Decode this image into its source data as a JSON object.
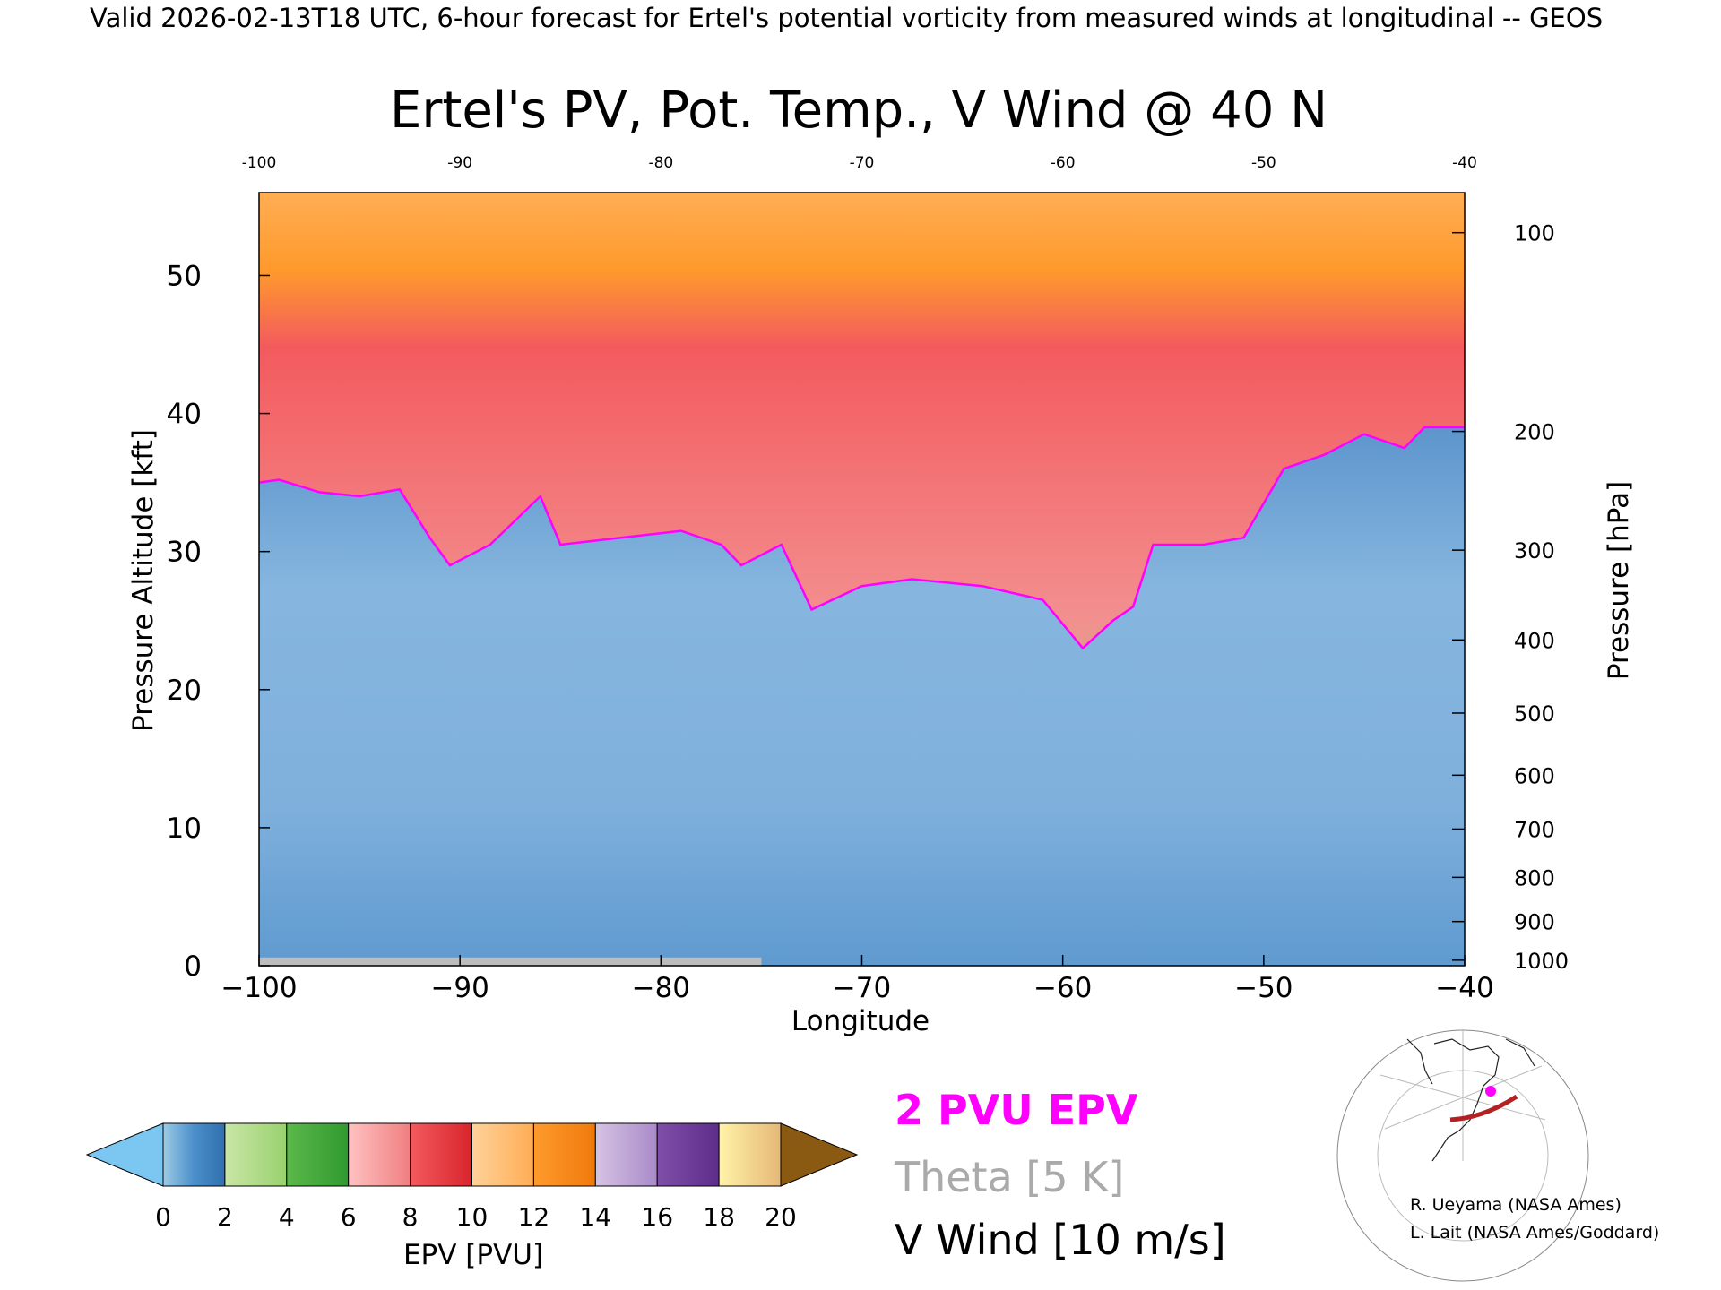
{
  "header": {
    "valid_line": "Valid 2026-02-13T18 UTC, 6-hour forecast for Ertel's potential vorticity from measured winds at longitudinal -- GEOS"
  },
  "chart_data": {
    "type": "heatmap",
    "title": "Ertel's PV, Pot. Temp., V Wind @ 40 N",
    "xlabel": "Longitude",
    "ylabel": "Pressure Altitude [kft]",
    "ylabel_right": "Pressure [hPa]",
    "xlim": [
      -100,
      -40
    ],
    "ylim": [
      0,
      56
    ],
    "x_ticks": [
      -100,
      -90,
      -80,
      -70,
      -60,
      -50,
      -40
    ],
    "x_tick_labels": [
      "−100",
      "−90",
      "−80",
      "−70",
      "−60",
      "−50",
      "−40"
    ],
    "x_ticks_top": [
      -100,
      -90,
      -80,
      -70,
      -60,
      -50,
      -40
    ],
    "y_ticks": [
      0,
      10,
      20,
      30,
      40,
      50
    ],
    "pressure_ticks_hpa": [
      {
        "hpa": 100,
        "kft": 53.1
      },
      {
        "hpa": 200,
        "kft": 38.7
      },
      {
        "hpa": 300,
        "kft": 30.1
      },
      {
        "hpa": 400,
        "kft": 23.6
      },
      {
        "hpa": 500,
        "kft": 18.3
      },
      {
        "hpa": 600,
        "kft": 13.8
      },
      {
        "hpa": 700,
        "kft": 9.9
      },
      {
        "hpa": 800,
        "kft": 6.4
      },
      {
        "hpa": 900,
        "kft": 3.2
      },
      {
        "hpa": 1000,
        "kft": 0.4
      }
    ],
    "tropopause_2pvu": [
      [
        -100,
        35
      ],
      [
        -99,
        35.2
      ],
      [
        -97,
        34.3
      ],
      [
        -95,
        34
      ],
      [
        -93,
        34.5
      ],
      [
        -91.5,
        31
      ],
      [
        -90.5,
        29
      ],
      [
        -88.5,
        30.5
      ],
      [
        -86,
        34
      ],
      [
        -85,
        30.5
      ],
      [
        -82,
        31
      ],
      [
        -79,
        31.5
      ],
      [
        -77,
        30.5
      ],
      [
        -76,
        29
      ],
      [
        -74,
        30.5
      ],
      [
        -72.5,
        25.8
      ],
      [
        -70,
        27.5
      ],
      [
        -67.5,
        28
      ],
      [
        -64,
        27.5
      ],
      [
        -61,
        26.5
      ],
      [
        -59,
        23
      ],
      [
        -57.5,
        25
      ],
      [
        -56.5,
        26
      ],
      [
        -55.5,
        30.5
      ],
      [
        -53,
        30.5
      ],
      [
        -51,
        31
      ],
      [
        -49,
        36
      ],
      [
        -47,
        37
      ],
      [
        -45,
        38.5
      ],
      [
        -43,
        37.5
      ],
      [
        -42,
        39
      ],
      [
        -40,
        39
      ]
    ],
    "legend": [
      {
        "label": "2 PVU EPV",
        "color": "#ff00ff"
      },
      {
        "label": "Theta [5 K]",
        "color": "#aaaaaa"
      },
      {
        "label": "V Wind [10 m/s]",
        "color": "#000000"
      }
    ],
    "colorbar": {
      "label": "EPV [PVU]",
      "ticks": [
        0,
        2,
        4,
        6,
        8,
        10,
        12,
        14,
        16,
        18,
        20
      ],
      "segments": [
        {
          "from": 0,
          "to": 2,
          "colors": [
            "#9ccbe6",
            "#4b8fca",
            "#2f6fae"
          ]
        },
        {
          "from": 2,
          "to": 4,
          "colors": [
            "#c9e6a6",
            "#99d16e"
          ]
        },
        {
          "from": 4,
          "to": 6,
          "colors": [
            "#5cb84a",
            "#2f9a30"
          ]
        },
        {
          "from": 6,
          "to": 8,
          "colors": [
            "#ffc2c2",
            "#f07f80"
          ]
        },
        {
          "from": 8,
          "to": 10,
          "colors": [
            "#f35a5e",
            "#d8252c"
          ]
        },
        {
          "from": 10,
          "to": 12,
          "colors": [
            "#ffd29a",
            "#ffad54"
          ]
        },
        {
          "from": 12,
          "to": 14,
          "colors": [
            "#ff9a2c",
            "#f07a0c"
          ]
        },
        {
          "from": 14,
          "to": 16,
          "colors": [
            "#d6c3e3",
            "#a98ac9"
          ]
        },
        {
          "from": 16,
          "to": 18,
          "colors": [
            "#7f4fa8",
            "#5d2d8a"
          ]
        },
        {
          "from": 18,
          "to": 20,
          "colors": [
            "#fff3a8",
            "#e6b877"
          ]
        }
      ],
      "under_color": "#7cc7f2",
      "over_color": "#8a5a12"
    },
    "grid": false
  },
  "credits": [
    "R. Ueyama (NASA Ames)",
    "L. Lait (NASA Ames/Goddard)"
  ]
}
